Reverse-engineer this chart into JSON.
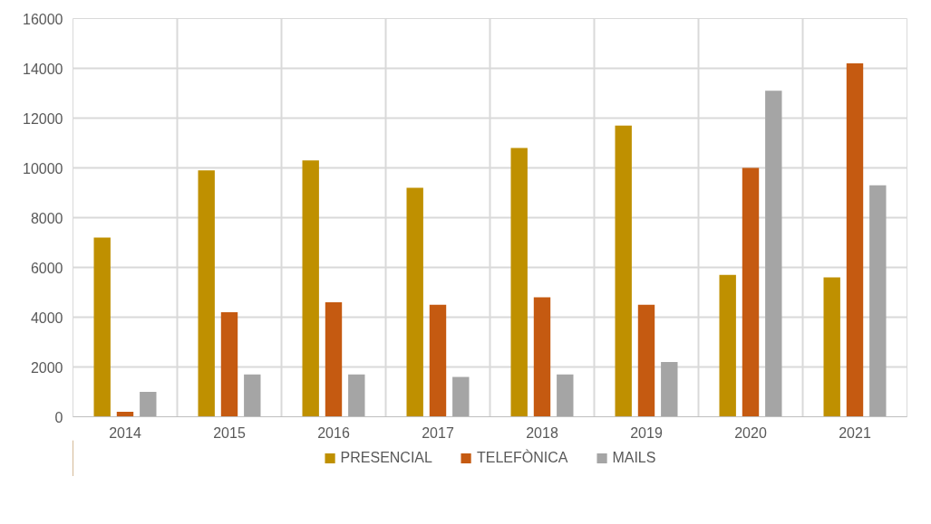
{
  "chart_data": {
    "type": "bar",
    "categories": [
      "2014",
      "2015",
      "2016",
      "2017",
      "2018",
      "2019",
      "2020",
      "2021"
    ],
    "series": [
      {
        "name": "PRESENCIAL",
        "color": "#bf9000",
        "values": [
          7200,
          9900,
          10300,
          9200,
          10800,
          11700,
          5700,
          5600
        ]
      },
      {
        "name": "TELEFÒNICA",
        "color": "#c55a11",
        "values": [
          200,
          4200,
          4600,
          4500,
          4800,
          4500,
          10000,
          14200
        ]
      },
      {
        "name": "MAILS",
        "color": "#a5a5a5",
        "values": [
          1000,
          1700,
          1700,
          1600,
          1700,
          2200,
          13100,
          9300
        ]
      }
    ],
    "ylim": [
      0,
      16000
    ],
    "yticks": [
      0,
      2000,
      4000,
      6000,
      8000,
      10000,
      12000,
      14000,
      16000
    ],
    "grid": true,
    "legend": "bottom"
  }
}
